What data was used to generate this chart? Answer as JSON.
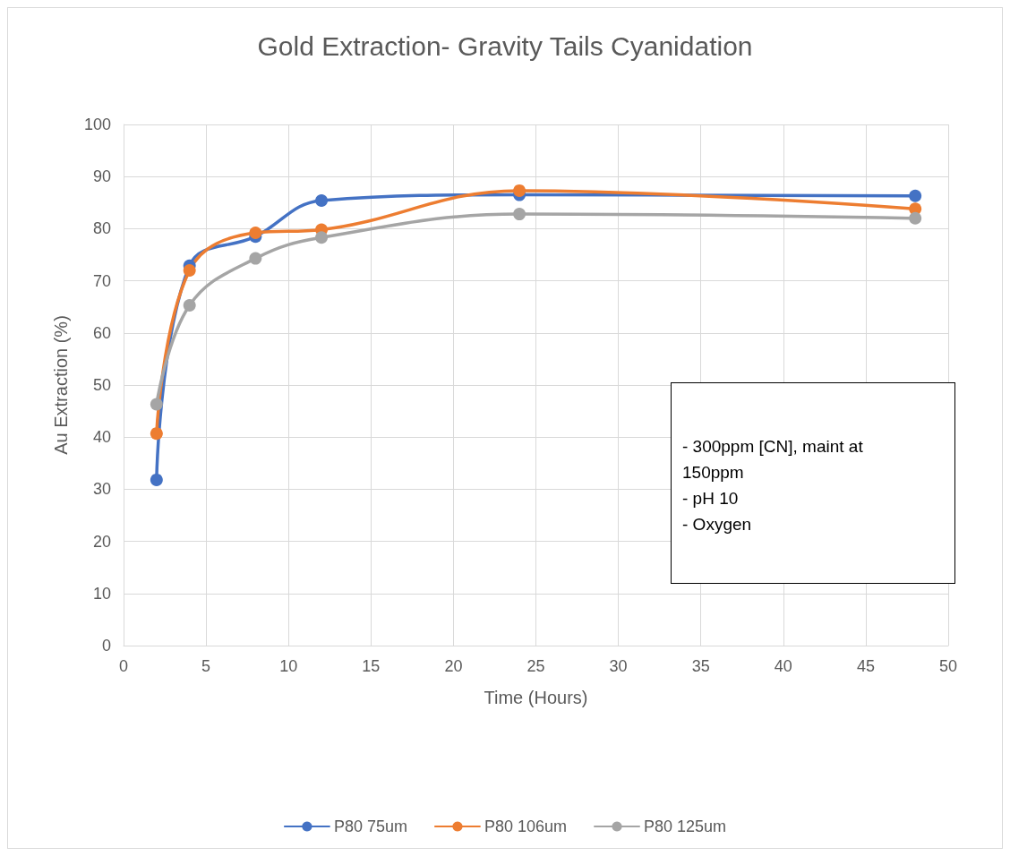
{
  "chart_data": {
    "type": "line",
    "title": "Gold Extraction- Gravity Tails Cyanidation",
    "xlabel": "Time (Hours)",
    "ylabel": "Au Extraction (%)",
    "x": [
      2,
      4,
      8,
      12,
      24,
      48
    ],
    "series": [
      {
        "name": "P80 75um",
        "color": "#4472c4",
        "values": [
          31.8,
          72.9,
          78.5,
          85.4,
          86.5,
          86.3
        ]
      },
      {
        "name": "P80 106um",
        "color": "#ed7d31",
        "values": [
          40.7,
          72.0,
          79.2,
          79.8,
          87.3,
          83.8
        ]
      },
      {
        "name": "P80 125um",
        "color": "#a5a5a5",
        "values": [
          46.3,
          65.3,
          74.3,
          78.3,
          82.8,
          82.0
        ]
      }
    ],
    "xlim": [
      0,
      50
    ],
    "xticks": [
      0,
      5,
      10,
      15,
      20,
      25,
      30,
      35,
      40,
      45,
      50
    ],
    "ylim": [
      0,
      100
    ],
    "yticks": [
      0,
      10,
      20,
      30,
      40,
      50,
      60,
      70,
      80,
      90,
      100
    ],
    "grid": true,
    "legend": "bottom",
    "marker": "circle",
    "line_style": "solid",
    "annotations": [
      "- 300ppm [CN], maint at 150ppm",
      "- pH 10",
      "- Oxygen"
    ]
  }
}
